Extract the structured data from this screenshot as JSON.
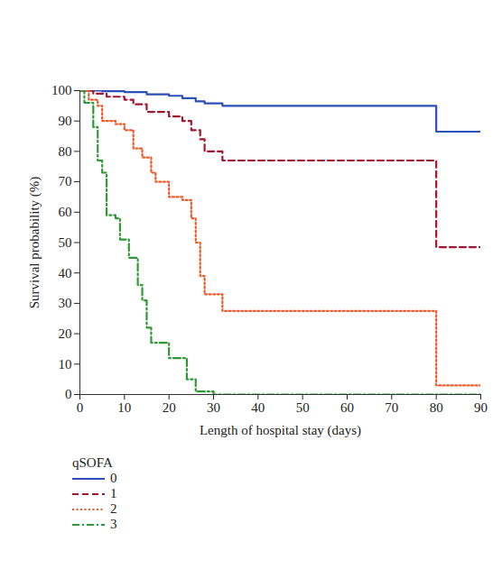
{
  "chart_data": {
    "type": "line",
    "x_label": "Length of hospital stay (days)",
    "y_label": "Survival probability (%)",
    "xlim": [
      0,
      90
    ],
    "xticks": [
      0,
      10,
      20,
      30,
      40,
      50,
      60,
      70,
      80,
      90
    ],
    "ylim": [
      0,
      100
    ],
    "yticks": [
      0,
      10,
      20,
      30,
      40,
      50,
      60,
      70,
      80,
      90,
      100
    ],
    "grid": false,
    "legend": "bottom",
    "legend_title": "qSOFA",
    "series": [
      {
        "name": "0",
        "color": "#2c4fb8",
        "line_style": "solid",
        "x": [
          0,
          5,
          10,
          15,
          20,
          23,
          26,
          28,
          32,
          80,
          90
        ],
        "values": [
          100,
          99.8,
          99.5,
          98.8,
          98.3,
          97.5,
          96.5,
          95.8,
          95,
          86.5,
          86.5
        ]
      },
      {
        "name": "1",
        "color": "#a3162e",
        "line_style": "dashed",
        "x": [
          0,
          3,
          6,
          10,
          12,
          15,
          20,
          23,
          25,
          27,
          28,
          32,
          80,
          90
        ],
        "values": [
          100,
          99,
          98,
          97,
          95.5,
          93,
          91.5,
          90,
          87,
          84,
          80,
          77,
          48.5,
          48.5
        ]
      },
      {
        "name": "2",
        "color": "#f05a28",
        "line_style": "dotted",
        "x": [
          0,
          2,
          4,
          5,
          8,
          10,
          12,
          14,
          16,
          17,
          20,
          23,
          25,
          26,
          27,
          28,
          32,
          80,
          90
        ],
        "values": [
          100,
          97,
          95,
          90,
          89,
          87,
          81,
          78,
          73,
          70,
          65,
          64,
          58,
          50,
          39,
          33,
          27.5,
          3,
          3
        ]
      },
      {
        "name": "3",
        "color": "#2e9a36",
        "line_style": "dashdot",
        "x": [
          0,
          1,
          3,
          4,
          5,
          6,
          8,
          9,
          11,
          13,
          14,
          15,
          16,
          20,
          24,
          26,
          30,
          90
        ],
        "values": [
          100,
          96,
          88,
          77,
          73,
          59,
          58,
          51,
          45,
          36,
          31,
          22,
          17,
          12,
          5,
          1,
          0,
          0
        ]
      }
    ]
  }
}
